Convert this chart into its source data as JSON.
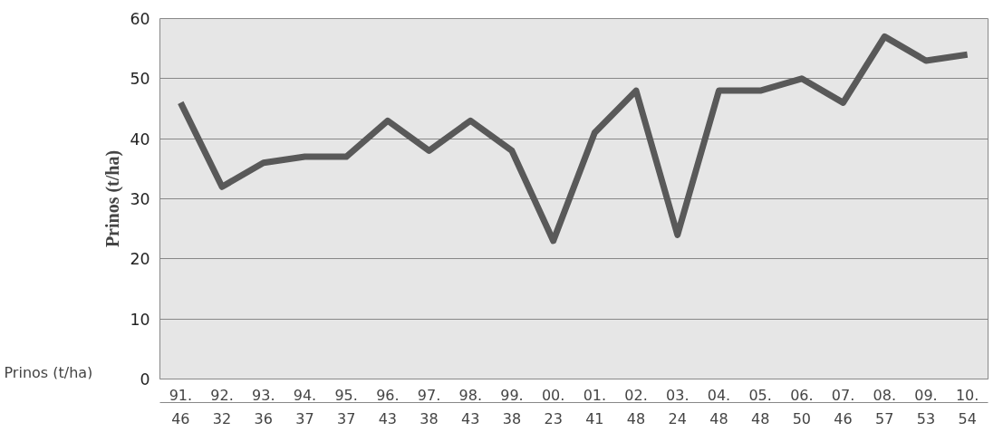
{
  "chart_data": {
    "type": "line",
    "ylabel": "Prinos (t/ha)",
    "categories": [
      "91.",
      "92.",
      "93.",
      "94.",
      "95.",
      "96.",
      "97.",
      "98.",
      "99.",
      "00.",
      "01.",
      "02.",
      "03.",
      "04.",
      "05.",
      "06.",
      "07.",
      "08.",
      "09.",
      "10."
    ],
    "series": [
      {
        "name": "Prinos (t/ha)",
        "color": "#595959",
        "values": [
          46,
          32,
          36,
          37,
          37,
          43,
          38,
          43,
          38,
          23,
          41,
          48,
          24,
          48,
          48,
          50,
          46,
          57,
          53,
          54
        ]
      }
    ],
    "ylim": [
      0,
      60
    ],
    "yticks": [
      0,
      10,
      20,
      30,
      40,
      50,
      60
    ],
    "grid": "y",
    "marker": "none",
    "line_style": "solid",
    "data_labels": true
  }
}
